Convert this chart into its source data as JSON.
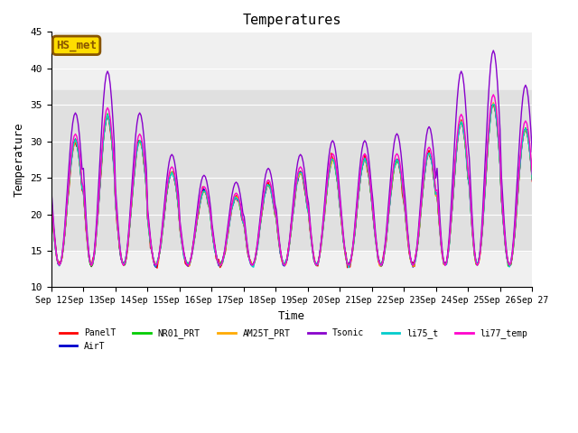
{
  "title": "Temperatures",
  "xlabel": "Time",
  "ylabel": "Temperature",
  "ylim": [
    10,
    45
  ],
  "xlim": [
    0,
    360
  ],
  "x_tick_labels": [
    "Sep 12",
    "Sep 13",
    "Sep 14",
    "Sep 15",
    "Sep 16",
    "Sep 17",
    "Sep 18",
    "Sep 19",
    "Sep 20",
    "Sep 21",
    "Sep 22",
    "Sep 23",
    "Sep 24",
    "Sep 25",
    "Sep 26",
    "Sep 27"
  ],
  "x_tick_positions": [
    0,
    24,
    48,
    72,
    96,
    120,
    144,
    168,
    192,
    216,
    240,
    264,
    288,
    312,
    336,
    360
  ],
  "series_names": [
    "PanelT",
    "AirT",
    "NR01_PRT",
    "AM25T_PRT",
    "Tsonic",
    "li75_t",
    "li77_temp"
  ],
  "series_colors": [
    "#ff0000",
    "#0000cc",
    "#00cc00",
    "#ffaa00",
    "#8800cc",
    "#00cccc",
    "#ff00cc"
  ],
  "legend_label": "HS_met",
  "legend_bg": "#ffdd00",
  "legend_border": "#885500",
  "shade_ymin": 15,
  "shade_ymax": 37,
  "shade_color": "#e0e0e0",
  "background_color": "#f0f0f0",
  "font_family": "monospace",
  "yticks": [
    10,
    15,
    20,
    25,
    30,
    35,
    40,
    45
  ]
}
